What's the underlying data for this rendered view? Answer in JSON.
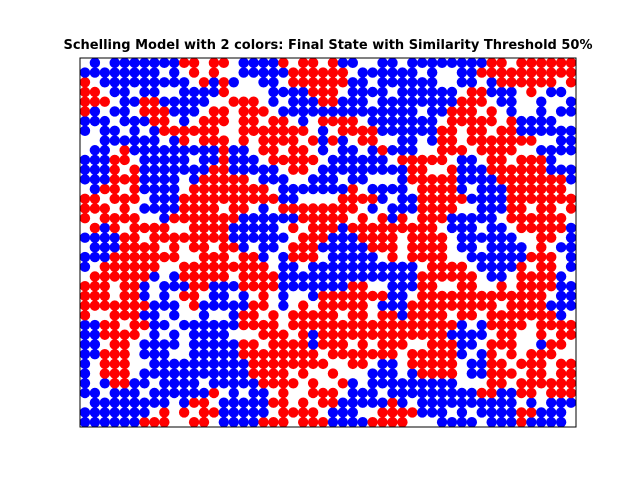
{
  "chart_data": {
    "type": "scatter",
    "title": "Schelling Model with 2 colors: Final State with Similarity Threshold 50%",
    "xlabel": "",
    "ylabel": "",
    "grid": false,
    "legend": "none",
    "axes_ticks": false,
    "grid_size": {
      "cols": 50,
      "rows": 38
    },
    "xlim": [
      -0.5,
      49.5
    ],
    "ylim": [
      -0.5,
      37.5
    ],
    "colors": {
      "red": "#ff0000",
      "blue": "#0000ff",
      "empty": "#ffffff"
    },
    "empty_fraction": 0.2,
    "series": [
      {
        "color_name": "red",
        "share_of_agents": 0.5
      },
      {
        "color_name": "blue",
        "share_of_agents": 0.5
      }
    ]
  }
}
